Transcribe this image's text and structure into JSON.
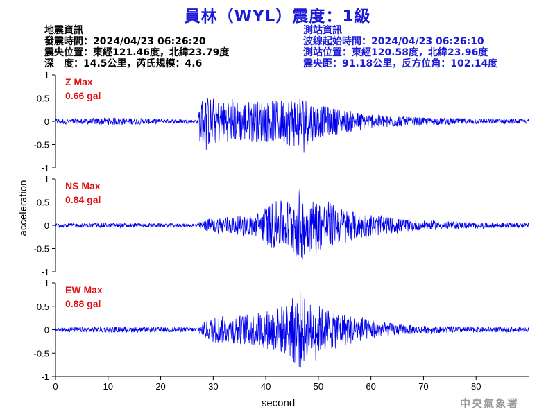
{
  "title": "員林（WYL）震度：1級",
  "event_info": {
    "heading": "地震資訊",
    "origin_time": "發震時間：2024/04/23 06:26:20",
    "epicenter": "震央位置：東經121.46度，北緯23.79度",
    "depth_magnitude": "深　度：14.5公里，芮氏規模：4.6"
  },
  "station_info": {
    "heading": "測站資訊",
    "wave_start": "波線起始時間：2024/04/23 06:26:10",
    "station_location": "測站位置：東經120.58度，北緯23.96度",
    "distance_azimuth": "震央距：91.18公里，反方位角：102.14度"
  },
  "footer": "中央氣象署",
  "colors": {
    "title": "#1a1ad8",
    "trace": "#0000ee",
    "label": "#e01010",
    "axis": "#000000"
  },
  "chart_data": {
    "type": "line",
    "xlabel": "second",
    "ylabel": "acceleration",
    "xlim": [
      0,
      90
    ],
    "x_ticks": [
      "0",
      "10",
      "20",
      "30",
      "40",
      "50",
      "60",
      "70",
      "80"
    ],
    "x_tick_values": [
      0,
      10,
      20,
      30,
      40,
      50,
      60,
      70,
      80
    ],
    "ylim": [
      -1,
      1
    ],
    "y_ticks": [
      "1",
      "0.5",
      "0",
      "-0.5",
      "-1"
    ],
    "y_tick_values": [
      1,
      0.5,
      0,
      -0.5,
      -1
    ],
    "grid": false,
    "series": [
      {
        "name": "Z Max",
        "peak_label": "0.66 gal",
        "peak": 0.66,
        "envelope": [
          [
            0,
            0.06
          ],
          [
            5,
            0.06
          ],
          [
            10,
            0.08
          ],
          [
            15,
            0.07
          ],
          [
            20,
            0.05
          ],
          [
            27,
            0.04
          ],
          [
            27.5,
            0.5
          ],
          [
            29,
            0.55
          ],
          [
            32,
            0.45
          ],
          [
            35,
            0.45
          ],
          [
            38,
            0.45
          ],
          [
            42,
            0.45
          ],
          [
            45,
            0.55
          ],
          [
            46.5,
            0.6
          ],
          [
            48,
            0.5
          ],
          [
            50,
            0.35
          ],
          [
            55,
            0.25
          ],
          [
            60,
            0.15
          ],
          [
            65,
            0.12
          ],
          [
            70,
            0.08
          ],
          [
            80,
            0.06
          ],
          [
            90,
            0.05
          ]
        ]
      },
      {
        "name": "NS Max",
        "peak_label": "0.84 gal",
        "peak": 0.84,
        "envelope": [
          [
            0,
            0.04
          ],
          [
            10,
            0.05
          ],
          [
            20,
            0.04
          ],
          [
            27,
            0.04
          ],
          [
            28,
            0.12
          ],
          [
            32,
            0.2
          ],
          [
            36,
            0.2
          ],
          [
            39,
            0.3
          ],
          [
            41,
            0.5
          ],
          [
            44,
            0.55
          ],
          [
            46.5,
            0.8
          ],
          [
            48,
            0.6
          ],
          [
            52,
            0.5
          ],
          [
            55,
            0.35
          ],
          [
            60,
            0.25
          ],
          [
            65,
            0.15
          ],
          [
            70,
            0.1
          ],
          [
            80,
            0.06
          ],
          [
            90,
            0.05
          ]
        ]
      },
      {
        "name": "EW Max",
        "peak_label": "0.88 gal",
        "peak": 0.88,
        "envelope": [
          [
            0,
            0.05
          ],
          [
            10,
            0.06
          ],
          [
            20,
            0.05
          ],
          [
            27,
            0.05
          ],
          [
            28,
            0.15
          ],
          [
            30,
            0.28
          ],
          [
            34,
            0.3
          ],
          [
            38,
            0.35
          ],
          [
            41,
            0.45
          ],
          [
            44,
            0.55
          ],
          [
            46.5,
            0.88
          ],
          [
            48,
            0.6
          ],
          [
            52,
            0.45
          ],
          [
            55,
            0.35
          ],
          [
            60,
            0.2
          ],
          [
            65,
            0.12
          ],
          [
            70,
            0.08
          ],
          [
            80,
            0.06
          ],
          [
            90,
            0.05
          ]
        ]
      }
    ]
  }
}
